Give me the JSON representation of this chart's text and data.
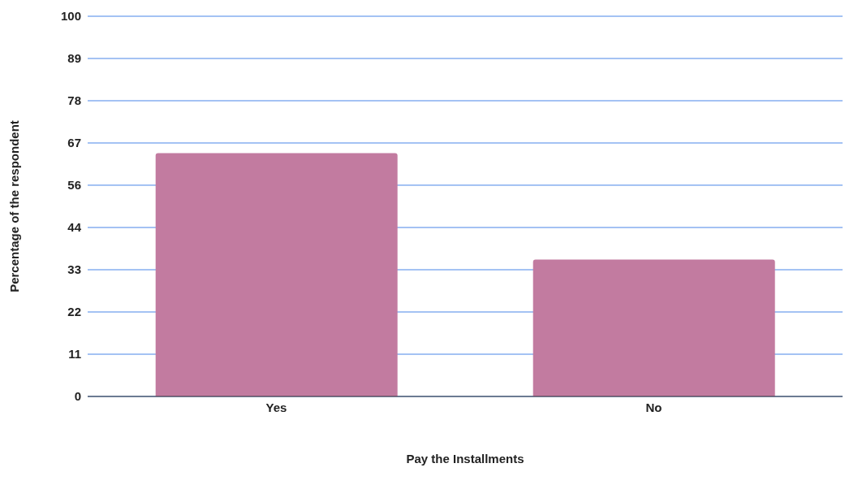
{
  "chart_data": {
    "type": "bar",
    "xlabel": "Pay the Installments",
    "ylabel": "Percentage of the respondent",
    "categories": [
      "Yes",
      "No"
    ],
    "values": [
      64,
      36
    ],
    "color": "#c27ba0",
    "ylim": [
      0,
      100
    ],
    "yticks": [
      0,
      {
        "value": 11.11,
        "label": "11"
      },
      {
        "value": 22.22,
        "label": "22"
      },
      {
        "value": 33.33,
        "label": "33"
      },
      {
        "value": 44.44,
        "label": "44"
      },
      {
        "value": 55.56,
        "label": "56"
      },
      {
        "value": 66.67,
        "label": "67"
      },
      {
        "value": 77.78,
        "label": "78"
      },
      {
        "value": 88.89,
        "label": "89"
      },
      100
    ],
    "grid": "y",
    "legend": false
  }
}
